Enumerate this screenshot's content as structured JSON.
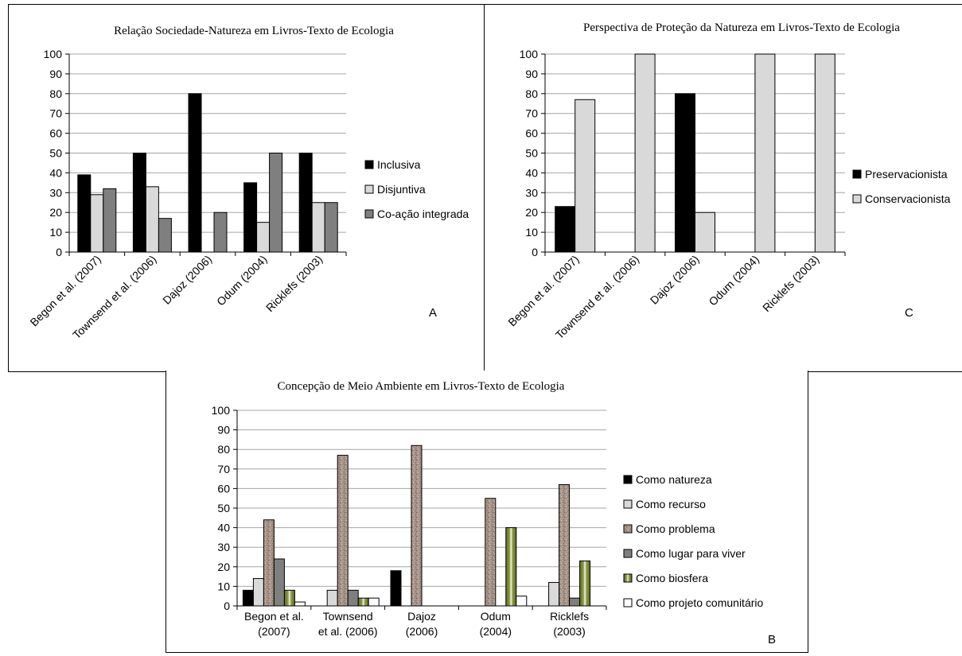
{
  "chart_data": [
    {
      "id": "A",
      "type": "bar",
      "title": "Relação Sociedade-Natureza em Livros-Texto de Ecologia",
      "panel_letter": "A",
      "categories": [
        "Begon et al. (2007)",
        "Townsend et al. (2006)",
        "Dajoz (2006)",
        "Odum (2004)",
        "Ricklefs (2003)"
      ],
      "series": [
        {
          "name": "Inclusiva",
          "color": "#000000",
          "values": [
            39,
            50,
            80,
            35,
            50
          ]
        },
        {
          "name": "Disjuntiva",
          "color": "#d9d9d9",
          "values": [
            29,
            33,
            0,
            15,
            25
          ]
        },
        {
          "name": "Co-ação integrada",
          "color": "#7f7f7f",
          "values": [
            32,
            17,
            20,
            50,
            25
          ]
        }
      ],
      "ylim": [
        0,
        100
      ],
      "yticks": [
        0,
        10,
        20,
        30,
        40,
        50,
        60,
        70,
        80,
        90,
        100
      ],
      "grid": true,
      "legend": "right"
    },
    {
      "id": "C",
      "type": "bar",
      "title": "Perspectiva de Proteção da Natureza em Livros-Texto de Ecologia",
      "panel_letter": "C",
      "categories": [
        "Begon et al. (2007)",
        "Townsend et al. (2006)",
        "Dajoz (2006)",
        "Odum (2004)",
        "Ricklefs (2003)"
      ],
      "series": [
        {
          "name": "Preservacionista",
          "color": "#000000",
          "values": [
            23,
            0,
            80,
            0,
            0
          ]
        },
        {
          "name": "Conservacionista",
          "color": "#d9d9d9",
          "values": [
            77,
            100,
            20,
            100,
            100
          ]
        }
      ],
      "ylim": [
        0,
        100
      ],
      "yticks": [
        0,
        10,
        20,
        30,
        40,
        50,
        60,
        70,
        80,
        90,
        100
      ],
      "grid": true,
      "legend": "right"
    },
    {
      "id": "B",
      "type": "bar",
      "title": "Concepção de Meio Ambiente em Livros-Texto de Ecologia",
      "panel_letter": "B",
      "categories": [
        [
          "Begon et al.",
          "(2007)"
        ],
        [
          "Townsend",
          "et al. (2006)"
        ],
        [
          "Dajoz",
          "(2006)"
        ],
        [
          "Odum",
          "(2004)"
        ],
        [
          "Ricklefs",
          "(2003)"
        ]
      ],
      "series": [
        {
          "name": "Como natureza",
          "color": "#000000",
          "values": [
            8,
            0,
            18,
            0,
            0
          ]
        },
        {
          "name": "Como recurso",
          "color": "#d9d9d9",
          "values": [
            14,
            8,
            0,
            0,
            12
          ]
        },
        {
          "name": "Como problema",
          "color": "#a89488",
          "pattern": "granite",
          "values": [
            44,
            77,
            82,
            55,
            62
          ]
        },
        {
          "name": "Como lugar para viver",
          "color": "#7f7f7f",
          "values": [
            24,
            8,
            0,
            0,
            4
          ]
        },
        {
          "name": "Como biosfera",
          "color": "#6b7a2a",
          "pattern": "glow",
          "values": [
            8,
            4,
            0,
            40,
            23
          ]
        },
        {
          "name": "Como projeto comunitário",
          "color": "#ffffff",
          "values": [
            2,
            4,
            0,
            5,
            0
          ]
        }
      ],
      "ylim": [
        0,
        100
      ],
      "yticks": [
        0,
        10,
        20,
        30,
        40,
        50,
        60,
        70,
        80,
        90,
        100
      ],
      "grid": true,
      "legend": "right"
    }
  ]
}
